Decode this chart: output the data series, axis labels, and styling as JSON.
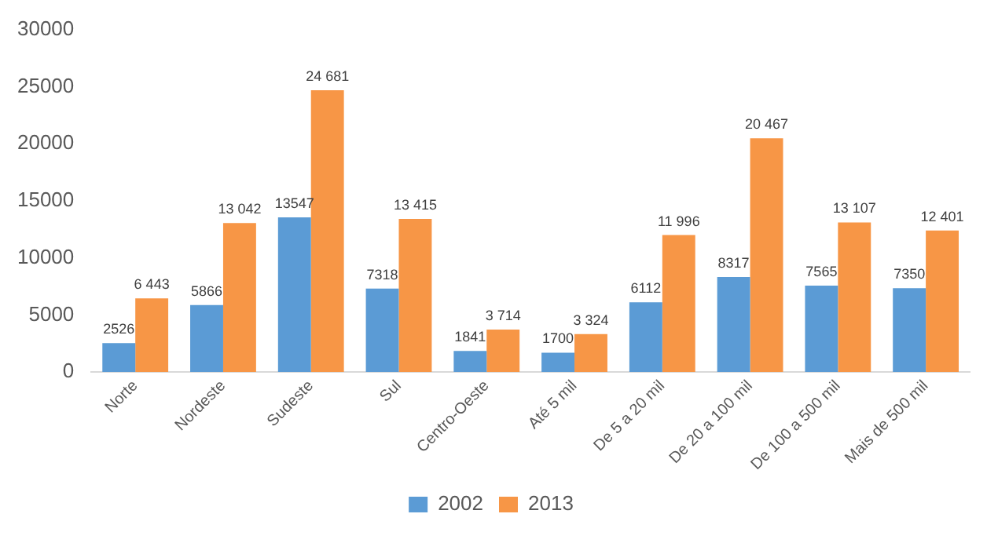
{
  "chart_data": {
    "type": "bar",
    "categories": [
      "Norte",
      "Nordeste",
      "Sudeste",
      "Sul",
      "Centro-Oeste",
      "Até 5 mil",
      "De 5 a 20 mil",
      "De 20 a 100 mil",
      "De 100 a 500 mil",
      "Mais de 500 mil"
    ],
    "series": [
      {
        "name": "2002",
        "color": "#5b9bd5",
        "values": [
          2526,
          5866,
          13547,
          7318,
          1841,
          1700,
          6112,
          8317,
          7565,
          7350
        ],
        "value_labels": [
          "2526",
          "5866",
          "13547",
          "7318",
          "1841",
          "1700",
          "6112",
          "8317",
          "7565",
          "7350"
        ]
      },
      {
        "name": "2013",
        "color": "#f79646",
        "values": [
          6443,
          13042,
          24681,
          13415,
          3714,
          3324,
          11996,
          20467,
          13107,
          12401
        ],
        "value_labels": [
          "6 443",
          "13 042",
          "24 681",
          "13 415",
          "3 714",
          "3 324",
          "11 996",
          "20 467",
          "13 107",
          "12 401"
        ]
      }
    ],
    "ylim": [
      0,
      30000
    ],
    "yticks": [
      0,
      5000,
      10000,
      15000,
      20000,
      25000,
      30000
    ],
    "grid": false,
    "legend": "bottom"
  }
}
